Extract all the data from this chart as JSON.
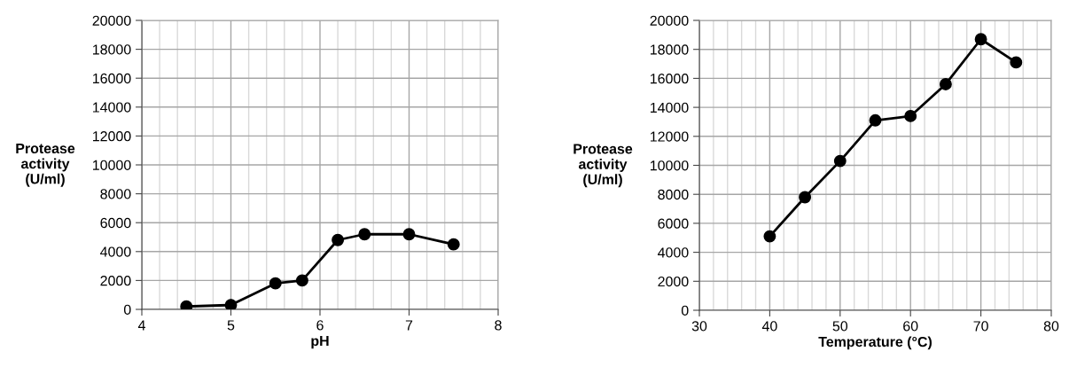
{
  "chart_data": [
    {
      "type": "line",
      "xlabel": "pH",
      "ylabel": "Protease\nactivity\n(U/ml)",
      "x": [
        4.5,
        5,
        5.5,
        5.8,
        6.2,
        6.5,
        7,
        7.5
      ],
      "series": [
        {
          "color": "#000000",
          "values": [
            200,
            300,
            1800,
            2000,
            4800,
            5200,
            5200,
            4500
          ]
        }
      ],
      "xlim": [
        4,
        8
      ],
      "xticks": [
        4,
        5,
        6,
        7,
        8
      ],
      "ylim": [
        0,
        20000
      ],
      "yticks": [
        0,
        2000,
        4000,
        6000,
        8000,
        10000,
        12000,
        14000,
        16000,
        18000,
        20000
      ],
      "grid": true,
      "marker": "circle",
      "line_style": "solid",
      "legend": false
    },
    {
      "type": "line",
      "xlabel": "Temperature (°C)",
      "ylabel": "Protease\nactivity\n(U/ml)",
      "x": [
        40,
        45,
        50,
        55,
        60,
        65,
        70,
        75
      ],
      "series": [
        {
          "color": "#000000",
          "values": [
            5100,
            7800,
            10300,
            13100,
            13400,
            15600,
            18700,
            17100
          ]
        }
      ],
      "xlim": [
        30,
        80
      ],
      "xticks": [
        30,
        40,
        50,
        60,
        70,
        80
      ],
      "ylim": [
        0,
        20000
      ],
      "yticks": [
        0,
        2000,
        4000,
        6000,
        8000,
        10000,
        12000,
        14000,
        16000,
        18000,
        20000
      ],
      "grid": true,
      "marker": "circle",
      "line_style": "solid",
      "legend": false
    }
  ]
}
